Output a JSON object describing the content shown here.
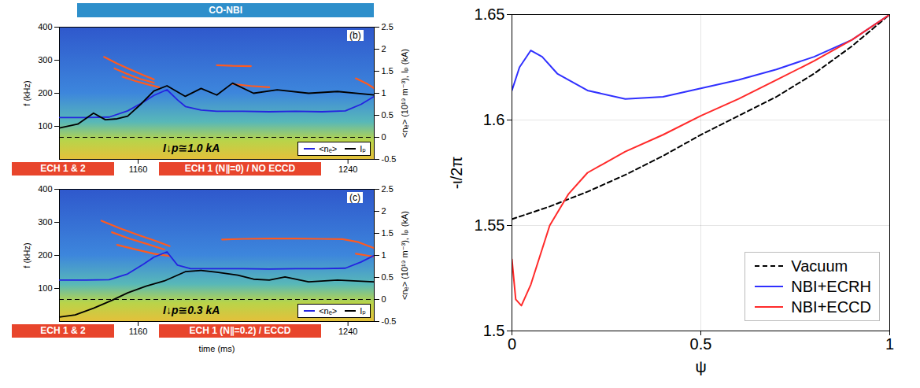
{
  "chart_data": [
    {
      "type": "line",
      "title": "(b)",
      "ylabel": "f (kHz)",
      "y2label": "<nₑ> (10¹⁹ m⁻³), Iₚ (kA)",
      "xlim": [
        1130,
        1250
      ],
      "xticks": [
        1160,
        1240
      ],
      "ylim": [
        0,
        400
      ],
      "yticks": [
        100,
        200,
        300,
        400
      ],
      "y2lim": [
        -0.5,
        2.5
      ],
      "y2ticks": [
        -0.5,
        0,
        0.5,
        1,
        1.5,
        2,
        2.5
      ],
      "legend": "lower right",
      "annotation": "I↓p≅1.0 kA",
      "hlines": [
        {
          "value": 0,
          "axis": "y2",
          "line_style": "dashed",
          "color": "#000000"
        }
      ],
      "above": [
        {
          "label": "CO-NBI",
          "start": 1137,
          "end": 1250,
          "color": "#2e8fcb"
        }
      ],
      "below": [
        {
          "label": "ECH 1 & 2",
          "start": 1112,
          "end": 1151,
          "color": "#e8452c"
        },
        {
          "label": "ECH 1 (N∥=0) / NO ECCD",
          "start": 1168,
          "end": 1230,
          "color": "#e8452c"
        }
      ],
      "series": [
        {
          "name": "<nₑ>",
          "color": "#2424e0",
          "axis": "y2",
          "line_style": "solid",
          "x": [
            1130,
            1140,
            1149,
            1156,
            1162,
            1166,
            1171,
            1175,
            1178,
            1184,
            1190,
            1200,
            1210,
            1220,
            1230,
            1239,
            1245,
            1250
          ],
          "values": [
            0.45,
            0.45,
            0.46,
            0.6,
            0.8,
            0.95,
            1.08,
            0.85,
            0.7,
            0.62,
            0.59,
            0.59,
            0.58,
            0.59,
            0.58,
            0.6,
            0.75,
            0.93
          ]
        },
        {
          "name": "Iₚ",
          "color": "#000000",
          "axis": "y2",
          "line_style": "solid",
          "x": [
            1130,
            1137,
            1143,
            1147.5,
            1152,
            1156,
            1161,
            1166,
            1171,
            1178,
            1184,
            1190,
            1196,
            1204,
            1213,
            1225,
            1236,
            1250
          ],
          "values": [
            0.21,
            0.3,
            0.55,
            0.4,
            0.42,
            0.48,
            0.75,
            1.05,
            1.17,
            0.93,
            1.11,
            0.96,
            1.23,
            1.0,
            1.08,
            1.0,
            1.04,
            0.96
          ]
        },
        {
          "color": "#ff5a1f",
          "axis": "y",
          "line_style": "solid",
          "x": [
            1147,
            1152,
            1157,
            1162,
            1166
          ],
          "values": [
            310,
            290,
            272,
            255,
            242
          ]
        },
        {
          "color": "#ff5a1f",
          "axis": "y",
          "line_style": "solid",
          "x": [
            1151,
            1156,
            1161,
            1166
          ],
          "values": [
            275,
            258,
            243,
            232
          ]
        },
        {
          "color": "#ff5a1f",
          "axis": "y",
          "line_style": "solid",
          "x": [
            1154,
            1159,
            1164,
            1168
          ],
          "values": [
            250,
            237,
            226,
            218
          ]
        },
        {
          "color": "#ff5a1f",
          "axis": "y",
          "line_style": "solid",
          "x": [
            1190,
            1196,
            1203
          ],
          "values": [
            285,
            283,
            282
          ]
        },
        {
          "color": "#ff5a1f",
          "axis": "y",
          "line_style": "solid",
          "x": [
            1196,
            1203,
            1210
          ],
          "values": [
            228,
            222,
            218
          ]
        },
        {
          "color": "#ff5a1f",
          "axis": "y",
          "line_style": "solid",
          "x": [
            1243,
            1247,
            1250
          ],
          "values": [
            245,
            230,
            215
          ]
        }
      ]
    },
    {
      "type": "line",
      "title": "(c)",
      "xlabel": "time (ms)",
      "ylabel": "f (kHz)",
      "y2label": "<nₑ> (10¹⁹ m⁻³), Iₚ (kA)",
      "xlim": [
        1130,
        1250
      ],
      "xticks": [
        1160,
        1240
      ],
      "ylim": [
        0,
        400
      ],
      "yticks": [
        100,
        200,
        300,
        400
      ],
      "y2lim": [
        -0.5,
        2.5
      ],
      "y2ticks": [
        -0.5,
        0,
        0.5,
        1,
        1.5,
        2,
        2.5
      ],
      "legend": "lower right",
      "annotation": "I↓p≅0.3 kA",
      "hlines": [
        {
          "value": 0,
          "axis": "y2",
          "line_style": "dashed",
          "color": "#000000"
        }
      ],
      "below": [
        {
          "label": "ECH 1 & 2",
          "start": 1112,
          "end": 1151,
          "color": "#e8452c"
        },
        {
          "label": "ECH 1 (N∥=0.2) / ECCD",
          "start": 1168,
          "end": 1230,
          "color": "#e8452c"
        }
      ],
      "series": [
        {
          "name": "<nₑ>",
          "color": "#2424e0",
          "axis": "y2",
          "line_style": "solid",
          "x": [
            1130,
            1140,
            1149,
            1156,
            1162,
            1166,
            1171,
            1175,
            1180,
            1190,
            1200,
            1210,
            1220,
            1230,
            1239,
            1245,
            1250
          ],
          "values": [
            0.44,
            0.44,
            0.45,
            0.58,
            0.8,
            0.96,
            1.08,
            0.78,
            0.7,
            0.7,
            0.7,
            0.69,
            0.7,
            0.7,
            0.71,
            0.85,
            1.0
          ]
        },
        {
          "name": "Iₚ",
          "color": "#000000",
          "axis": "y2",
          "line_style": "solid",
          "x": [
            1130,
            1136,
            1143,
            1150,
            1156,
            1163,
            1170,
            1178,
            1184,
            1190,
            1198,
            1204,
            1210,
            1216,
            1225,
            1236,
            1250
          ],
          "values": [
            -0.4,
            -0.35,
            -0.2,
            -0.02,
            0.15,
            0.3,
            0.42,
            0.63,
            0.66,
            0.62,
            0.55,
            0.46,
            0.44,
            0.51,
            0.4,
            0.44,
            0.4
          ]
        },
        {
          "color": "#ff5a1f",
          "axis": "y",
          "line_style": "solid",
          "x": [
            1146,
            1153,
            1160,
            1167,
            1172
          ],
          "values": [
            305,
            282,
            262,
            243,
            228
          ]
        },
        {
          "color": "#ff5a1f",
          "axis": "y",
          "line_style": "solid",
          "x": [
            1150,
            1157,
            1164,
            1170
          ],
          "values": [
            270,
            250,
            233,
            218
          ]
        },
        {
          "color": "#ff5a1f",
          "axis": "y",
          "line_style": "solid",
          "x": [
            1152,
            1159,
            1166,
            1172
          ],
          "values": [
            232,
            218,
            205,
            198
          ]
        },
        {
          "color": "#ff5a1f",
          "axis": "y",
          "line_style": "solid",
          "x": [
            1192,
            1200,
            1210,
            1220,
            1230,
            1238,
            1244,
            1250
          ],
          "values": [
            248,
            250,
            251,
            251,
            250,
            249,
            240,
            222
          ]
        },
        {
          "color": "#ff5a1f",
          "axis": "y",
          "line_style": "solid",
          "x": [
            1243,
            1247,
            1250
          ],
          "values": [
            205,
            200,
            196
          ]
        }
      ]
    },
    {
      "type": "line",
      "xlabel": "ψ",
      "ylabel": "-ι/2π",
      "xlim": [
        0,
        1
      ],
      "xticks": [
        0,
        0.5,
        1
      ],
      "ylim": [
        1.5,
        1.65
      ],
      "yticks": [
        1.5,
        1.55,
        1.6,
        1.65
      ],
      "grid": true,
      "legend": "lower right",
      "series": [
        {
          "name": "Vacuum",
          "color": "#000000",
          "line_style": "dashed",
          "x": [
            0,
            0.1,
            0.2,
            0.3,
            0.4,
            0.5,
            0.6,
            0.7,
            0.8,
            0.9,
            1
          ],
          "values": [
            1.553,
            1.559,
            1.566,
            1.574,
            1.583,
            1.593,
            1.602,
            1.611,
            1.622,
            1.635,
            1.65
          ]
        },
        {
          "name": "NBI+ECRH",
          "color": "#3030ff",
          "line_style": "solid",
          "x": [
            0,
            0.02,
            0.05,
            0.08,
            0.12,
            0.2,
            0.3,
            0.4,
            0.5,
            0.6,
            0.7,
            0.8,
            0.9,
            1
          ],
          "values": [
            1.614,
            1.625,
            1.633,
            1.63,
            1.622,
            1.614,
            1.61,
            1.611,
            1.615,
            1.619,
            1.624,
            1.63,
            1.638,
            1.65
          ]
        },
        {
          "name": "NBI+ECCD",
          "color": "#ff2a2a",
          "line_style": "solid",
          "x": [
            0,
            0.01,
            0.025,
            0.05,
            0.1,
            0.15,
            0.2,
            0.3,
            0.4,
            0.5,
            0.6,
            0.7,
            0.8,
            0.9,
            1
          ],
          "values": [
            1.534,
            1.515,
            1.512,
            1.522,
            1.55,
            1.565,
            1.575,
            1.585,
            1.593,
            1.602,
            1.61,
            1.619,
            1.628,
            1.638,
            1.65
          ]
        }
      ]
    }
  ]
}
